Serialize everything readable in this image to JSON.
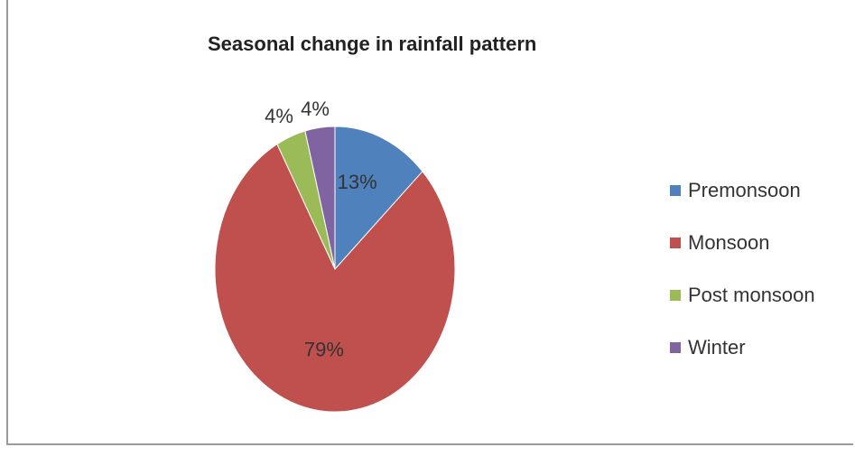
{
  "chart_data": {
    "type": "pie",
    "title": "Seasonal change in rainfall pattern",
    "categories": [
      "Premonsoon",
      "Monsoon",
      "Post monsoon",
      "Winter"
    ],
    "values": [
      13,
      79,
      4,
      4
    ],
    "labels": [
      "13%",
      "79%",
      "4%",
      "4%"
    ],
    "colors": [
      "#4f81bd",
      "#c0504d",
      "#9bbb59",
      "#8064a2"
    ],
    "legend": "right"
  }
}
